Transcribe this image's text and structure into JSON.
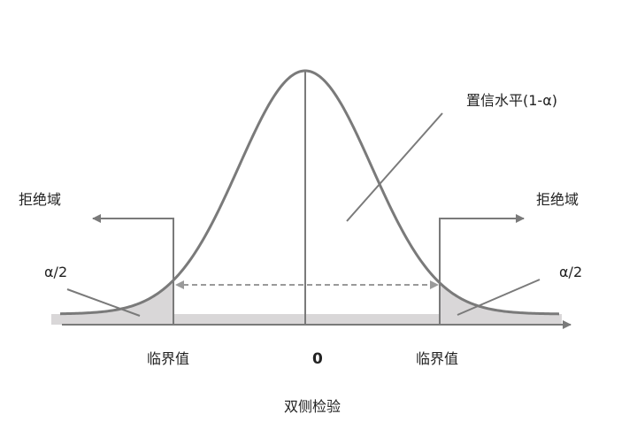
{
  "diagram": {
    "caption": "双侧检验",
    "confidence_label": "置信水平(1-α)",
    "rejection_left_label": "拒绝域",
    "rejection_right_label": "拒绝域",
    "alpha_left_label": "α/2",
    "alpha_right_label": "α/2",
    "critical_left_label": "临界值",
    "critical_right_label": "临界值",
    "center_label": "0",
    "colors": {
      "curve": "#7a7a7a",
      "tail_fill": "#d9d7d8",
      "axis": "#7a7a7a",
      "text": "#222222"
    }
  }
}
